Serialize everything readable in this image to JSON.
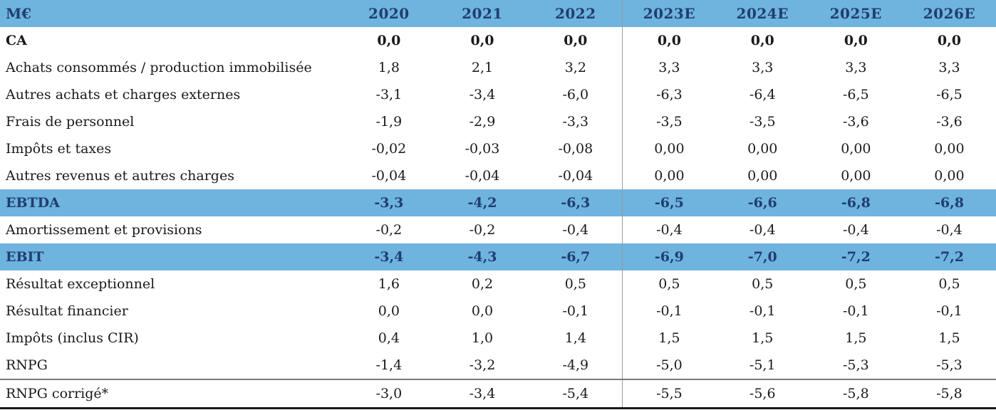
{
  "header": {
    "unit": "M€",
    "years": [
      "2020",
      "2021",
      "2022",
      "2023E",
      "2024E",
      "2025E",
      "2026E"
    ]
  },
  "rows": [
    {
      "label": "CA",
      "values": [
        "0,0",
        "0,0",
        "0,0",
        "0,0",
        "0,0",
        "0,0",
        "0,0"
      ],
      "style": "bold"
    },
    {
      "label": "Achats consommés / production immobilisée",
      "values": [
        "1,8",
        "2,1",
        "3,2",
        "3,3",
        "3,3",
        "3,3",
        "3,3"
      ],
      "style": "normal"
    },
    {
      "label": "Autres achats et charges externes",
      "values": [
        "-3,1",
        "-3,4",
        "-6,0",
        "-6,3",
        "-6,4",
        "-6,5",
        "-6,5"
      ],
      "style": "normal"
    },
    {
      "label": "Frais de personnel",
      "values": [
        "-1,9",
        "-2,9",
        "-3,3",
        "-3,5",
        "-3,5",
        "-3,6",
        "-3,6"
      ],
      "style": "normal"
    },
    {
      "label": "Impôts et taxes",
      "values": [
        "-0,02",
        "-0,03",
        "-0,08",
        "0,00",
        "0,00",
        "0,00",
        "0,00"
      ],
      "style": "normal"
    },
    {
      "label": "Autres revenus et autres charges",
      "values": [
        "-0,04",
        "-0,04",
        "-0,04",
        "0,00",
        "0,00",
        "0,00",
        "0,00"
      ],
      "style": "normal"
    },
    {
      "label": "EBTDA",
      "values": [
        "-3,3",
        "-4,2",
        "-6,3",
        "-6,5",
        "-6,6",
        "-6,8",
        "-6,8"
      ],
      "style": "highlight"
    },
    {
      "label": "Amortissement et provisions",
      "values": [
        "-0,2",
        "-0,2",
        "-0,4",
        "-0,4",
        "-0,4",
        "-0,4",
        "-0,4"
      ],
      "style": "normal"
    },
    {
      "label": "EBIT",
      "values": [
        "-3,4",
        "-4,3",
        "-6,7",
        "-6,9",
        "-7,0",
        "-7,2",
        "-7,2"
      ],
      "style": "highlight"
    },
    {
      "label": "Résultat exceptionnel",
      "values": [
        "1,6",
        "0,2",
        "0,5",
        "0,5",
        "0,5",
        "0,5",
        "0,5"
      ],
      "style": "normal"
    },
    {
      "label": "Résultat financier",
      "values": [
        "0,0",
        "0,0",
        "-0,1",
        "-0,1",
        "-0,1",
        "-0,1",
        "-0,1"
      ],
      "style": "normal"
    },
    {
      "label": "Impôts (inclus CIR)",
      "values": [
        "0,4",
        "1,0",
        "1,4",
        "1,5",
        "1,5",
        "1,5",
        "1,5"
      ],
      "style": "normal"
    },
    {
      "label": "RNPG",
      "values": [
        "-1,4",
        "-3,2",
        "-4,9",
        "-5,0",
        "-5,1",
        "-5,3",
        "-5,3"
      ],
      "style": "normal"
    },
    {
      "label": "RNPG corrigé*",
      "values": [
        "-3,0",
        "-3,4",
        "-5,4",
        "-5,5",
        "-5,6",
        "-5,8",
        "-5,8"
      ],
      "style": "divider-last"
    }
  ],
  "colors": {
    "highlight_bg": "#6fb3df",
    "highlight_text": "#1f3e6e",
    "body_text": "#1a1a1a"
  }
}
